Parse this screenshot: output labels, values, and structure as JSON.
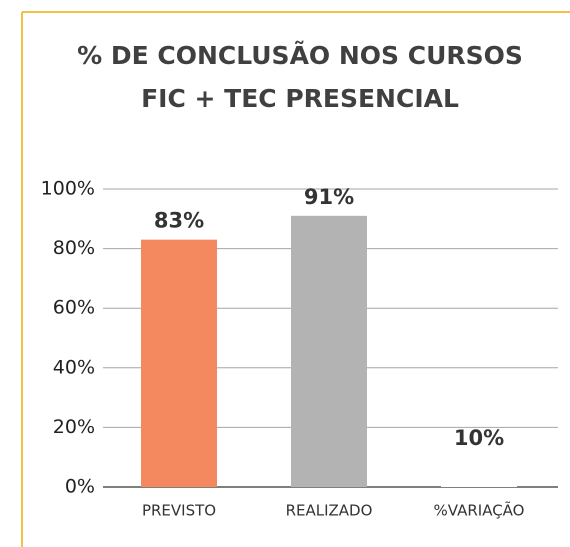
{
  "chart_data": {
    "type": "bar",
    "title": [
      "% DE CONCLUSÃO NOS CURSOS",
      "FIC + TEC PRESENCIAL"
    ],
    "categories": [
      "PREVISTO",
      "REALIZADO",
      "%VARIAÇÃO"
    ],
    "values": [
      83,
      91,
      10
    ],
    "value_labels": [
      "83%",
      "91%",
      "10%"
    ],
    "colors": [
      "#f4895f",
      "#b3b3b3",
      "#ffffff"
    ],
    "ylim": [
      0,
      100
    ],
    "yticks": [
      {
        "value": 0,
        "label": "0%"
      },
      {
        "value": 20,
        "label": "20%"
      },
      {
        "value": 40,
        "label": "40%"
      },
      {
        "value": 60,
        "label": "60%"
      },
      {
        "value": 80,
        "label": "80%"
      },
      {
        "value": 100,
        "label": "100%"
      }
    ],
    "grid": true
  }
}
